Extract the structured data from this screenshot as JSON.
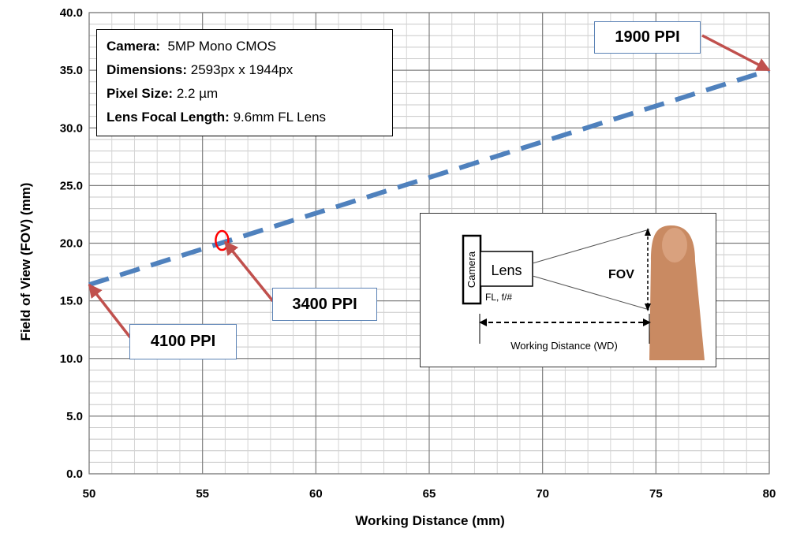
{
  "chart_data": {
    "type": "line",
    "title": "",
    "xlabel": "Working Distance (mm)",
    "ylabel": "Field of View (FOV) (mm)",
    "xlim": [
      50,
      80
    ],
    "ylim": [
      0,
      40
    ],
    "xticks": [
      "50",
      "55",
      "60",
      "65",
      "70",
      "75",
      "80"
    ],
    "yticks": [
      "0.0",
      "5.0",
      "10.0",
      "15.0",
      "20.0",
      "25.0",
      "30.0",
      "35.0",
      "40.0"
    ],
    "grid": true,
    "series": [
      {
        "color": "#4f81bd",
        "style": "dashed",
        "x": [
          50,
          80
        ],
        "y": [
          16.4,
          35.0
        ]
      }
    ],
    "marker_point": {
      "x": 56,
      "y": 20.1,
      "color": "#ff0000"
    },
    "annotations": [
      {
        "text": "4100 PPI",
        "target": {
          "x": 50,
          "y": 16.4
        }
      },
      {
        "text": "3400 PPI",
        "target": {
          "x": 56,
          "y": 20.1
        }
      },
      {
        "text": "1900 PPI",
        "target": {
          "x": 80,
          "y": 35.0
        }
      }
    ]
  },
  "info": {
    "camera_label": "Camera:",
    "camera_value": "5MP Mono CMOS",
    "dimensions_label": "Dimensions:",
    "dimensions_value": "2593px x 1944px",
    "pixel_label": "Pixel Size:",
    "pixel_value": "2.2 µm",
    "focal_label": "Lens Focal Length:",
    "focal_value": "9.6mm FL Lens"
  },
  "diagram": {
    "camera": "Camera",
    "lens": "Lens",
    "lens_params": "FL, f/#",
    "fov": "FOV",
    "working_distance": "Working Distance (WD)"
  },
  "colors": {
    "series": "#4f81bd",
    "arrow": "#c0504d",
    "callout_border": "#5b82b5",
    "marker": "#ff0000",
    "finger": "#c98a62"
  }
}
